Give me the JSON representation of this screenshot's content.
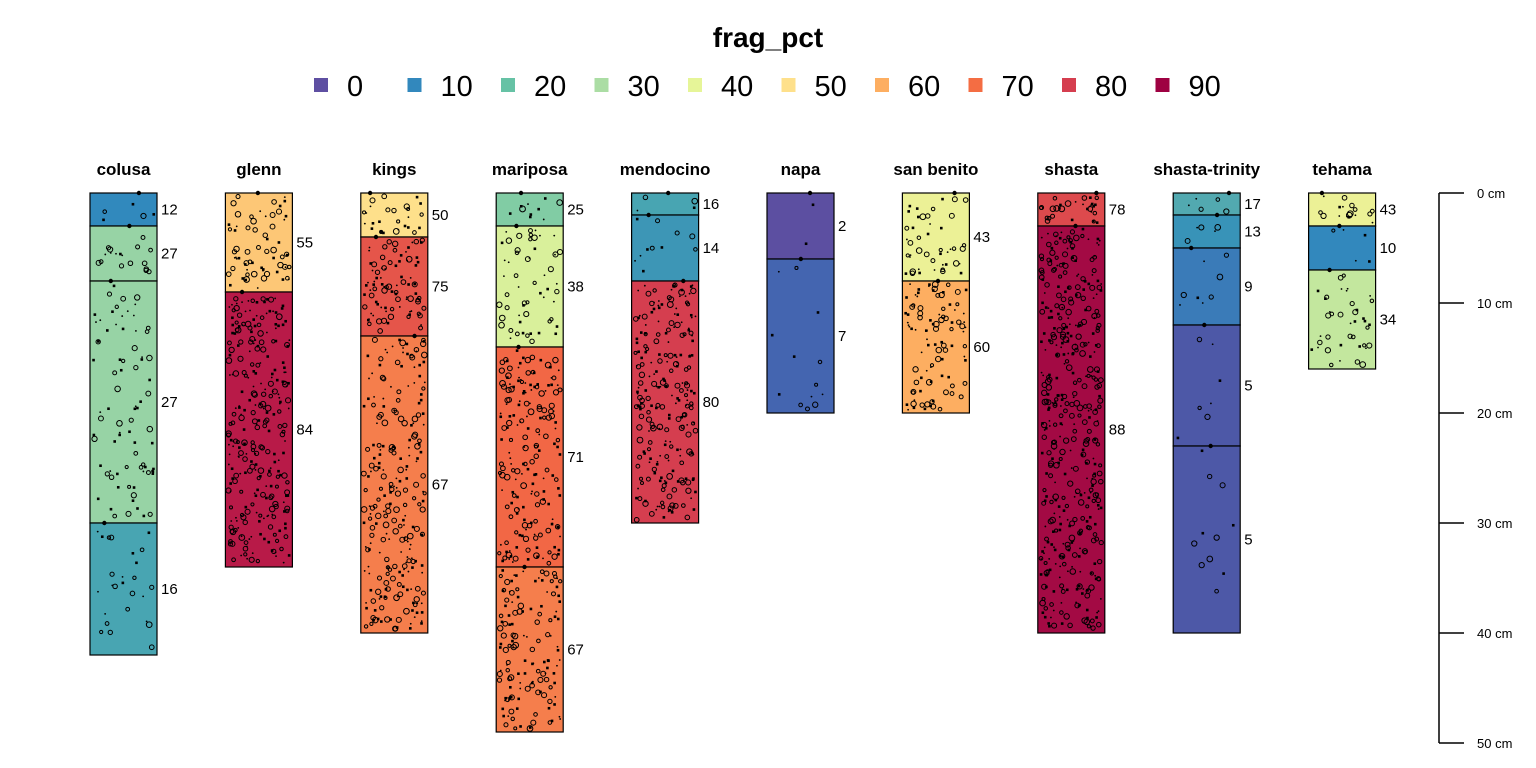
{
  "chart_data": {
    "type": "soil-profile",
    "title": "frag_pct",
    "legend": {
      "placement": "top",
      "entries": [
        {
          "label": "0",
          "color": "#5E4FA2"
        },
        {
          "label": "10",
          "color": "#3288BD"
        },
        {
          "label": "20",
          "color": "#66C2A5"
        },
        {
          "label": "30",
          "color": "#ABDDA4"
        },
        {
          "label": "40",
          "color": "#E6F598"
        },
        {
          "label": "50",
          "color": "#FEE08B"
        },
        {
          "label": "60",
          "color": "#FDAE61"
        },
        {
          "label": "70",
          "color": "#F46D43"
        },
        {
          "label": "80",
          "color": "#D53E4F"
        },
        {
          "label": "90",
          "color": "#9E0142"
        }
      ]
    },
    "depth_axis": {
      "unit": "cm",
      "range": [
        0,
        50
      ],
      "ticks": [
        "0 cm",
        "10 cm",
        "20 cm",
        "30 cm",
        "40 cm",
        "50 cm"
      ]
    },
    "profiles": [
      {
        "name": "colusa",
        "horizons": [
          {
            "top": 0,
            "bottom": 3,
            "value": 12,
            "label": "12",
            "color": "#3189BD"
          },
          {
            "top": 3,
            "bottom": 8,
            "value": 27,
            "label": "27",
            "color": "#97D3A5"
          },
          {
            "top": 8,
            "bottom": 30,
            "value": 27,
            "label": "27",
            "color": "#97D3A5"
          },
          {
            "top": 30,
            "bottom": 42,
            "value": 16,
            "label": "16",
            "color": "#48A5B2"
          }
        ]
      },
      {
        "name": "glenn",
        "horizons": [
          {
            "top": 0,
            "bottom": 9,
            "value": 55,
            "label": "55",
            "color": "#FDC776"
          },
          {
            "top": 9,
            "bottom": 34,
            "value": 84,
            "label": "84",
            "color": "#B81A48"
          }
        ]
      },
      {
        "name": "kings",
        "horizons": [
          {
            "top": 0,
            "bottom": 4,
            "value": 50,
            "label": "50",
            "color": "#FEE08B"
          },
          {
            "top": 4,
            "bottom": 13,
            "value": 75,
            "label": "75",
            "color": "#E5554A"
          },
          {
            "top": 13,
            "bottom": 40,
            "value": 67,
            "label": "67",
            "color": "#F57E4C"
          }
        ]
      },
      {
        "name": "mariposa",
        "horizons": [
          {
            "top": 0,
            "bottom": 3,
            "value": 25,
            "label": "25",
            "color": "#81CCA4"
          },
          {
            "top": 3,
            "bottom": 14,
            "value": 38,
            "label": "38",
            "color": "#D9F09B"
          },
          {
            "top": 14,
            "bottom": 34,
            "value": 71,
            "label": "71",
            "color": "#F26745"
          },
          {
            "top": 34,
            "bottom": 49,
            "value": 67,
            "label": "67",
            "color": "#F57E4C"
          }
        ]
      },
      {
        "name": "mendocino",
        "horizons": [
          {
            "top": 0,
            "bottom": 2,
            "value": 16,
            "label": "16",
            "color": "#48A5B2"
          },
          {
            "top": 2,
            "bottom": 8,
            "value": 14,
            "label": "14",
            "color": "#3D96B6"
          },
          {
            "top": 8,
            "bottom": 30,
            "value": 80,
            "label": "80",
            "color": "#D53E4F"
          }
        ]
      },
      {
        "name": "napa",
        "horizons": [
          {
            "top": 0,
            "bottom": 6,
            "value": 2,
            "label": "2",
            "color": "#5C4FA1"
          },
          {
            "top": 6,
            "bottom": 20,
            "value": 7,
            "label": "7",
            "color": "#4465B0"
          }
        ]
      },
      {
        "name": "san benito",
        "horizons": [
          {
            "top": 0,
            "bottom": 8,
            "value": 43,
            "label": "43",
            "color": "#ECF196"
          },
          {
            "top": 8,
            "bottom": 20,
            "value": 60,
            "label": "60",
            "color": "#FDAE61"
          }
        ]
      },
      {
        "name": "shasta",
        "horizons": [
          {
            "top": 0,
            "bottom": 3,
            "value": 78,
            "label": "78",
            "color": "#DD4A4D"
          },
          {
            "top": 3,
            "bottom": 40,
            "value": 88,
            "label": "88",
            "color": "#A30A44"
          }
        ]
      },
      {
        "name": "shasta-trinity",
        "horizons": [
          {
            "top": 0,
            "bottom": 2,
            "value": 17,
            "label": "17",
            "color": "#52A9B0"
          },
          {
            "top": 2,
            "bottom": 5,
            "value": 13,
            "label": "13",
            "color": "#3893B8"
          },
          {
            "top": 5,
            "bottom": 12,
            "value": 9,
            "label": "9",
            "color": "#3A7BB8"
          },
          {
            "top": 12,
            "bottom": 23,
            "value": 5,
            "label": "5",
            "color": "#4D58A7"
          },
          {
            "top": 23,
            "bottom": 40,
            "value": 5,
            "label": "5",
            "color": "#4D58A7"
          }
        ]
      },
      {
        "name": "tehama",
        "horizons": [
          {
            "top": 0,
            "bottom": 3,
            "value": 43,
            "label": "43",
            "color": "#ECF196"
          },
          {
            "top": 3,
            "bottom": 7,
            "value": 10,
            "label": "10",
            "color": "#3288BD"
          },
          {
            "top": 7,
            "bottom": 16,
            "value": 34,
            "label": "34",
            "color": "#C3E79E"
          }
        ]
      }
    ]
  }
}
